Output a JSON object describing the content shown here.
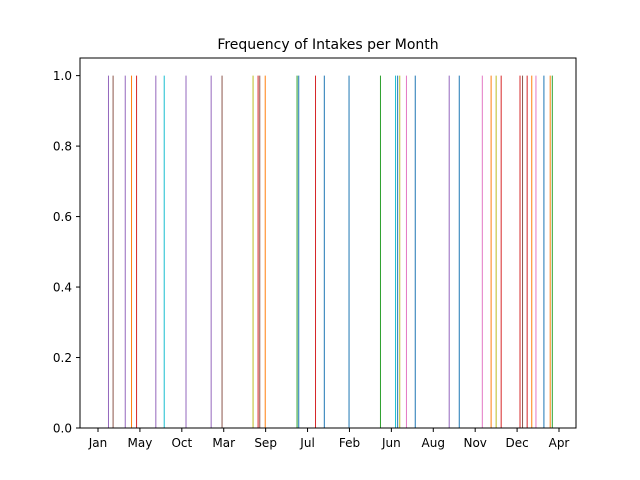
{
  "chart_data": {
    "type": "bar",
    "title": "Frequency of Intakes per Month",
    "xlabel": "",
    "ylabel": "",
    "ylim": [
      0,
      1.05
    ],
    "y_ticks": [
      "0.0",
      "0.2",
      "0.4",
      "0.6",
      "0.8",
      "1.0"
    ],
    "y_tick_values": [
      0.0,
      0.2,
      0.4,
      0.6,
      0.8,
      1.0
    ],
    "x_tick_labels": [
      "Jan",
      "May",
      "Oct",
      "Mar",
      "Sep",
      "Jul",
      "Feb",
      "Jun",
      "Aug",
      "Nov",
      "Dec",
      "Apr"
    ],
    "xlim": [
      0,
      11.5
    ],
    "grid": false,
    "bars": [
      {
        "x": 0.25,
        "value": 1.0,
        "color": "#9467bd"
      },
      {
        "x": 0.36,
        "value": 1.0,
        "color": "#8c564b"
      },
      {
        "x": 0.65,
        "value": 1.0,
        "color": "#9467bd"
      },
      {
        "x": 0.8,
        "value": 1.0,
        "color": "#ff7f0e"
      },
      {
        "x": 0.92,
        "value": 1.0,
        "color": "#d62728"
      },
      {
        "x": 1.38,
        "value": 1.0,
        "color": "#9467bd"
      },
      {
        "x": 1.58,
        "value": 1.0,
        "color": "#17becf"
      },
      {
        "x": 2.1,
        "value": 1.0,
        "color": "#9467bd"
      },
      {
        "x": 2.7,
        "value": 1.0,
        "color": "#9467bd"
      },
      {
        "x": 2.96,
        "value": 1.0,
        "color": "#8c564b"
      },
      {
        "x": 3.7,
        "value": 1.0,
        "color": "#bcbd22"
      },
      {
        "x": 3.82,
        "value": 1.0,
        "color": "#d62728"
      },
      {
        "x": 3.86,
        "value": 1.0,
        "color": "#8c564b"
      },
      {
        "x": 3.99,
        "value": 1.0,
        "color": "#ff7f0e"
      },
      {
        "x": 4.75,
        "value": 1.0,
        "color": "#2ca02c"
      },
      {
        "x": 4.79,
        "value": 1.0,
        "color": "#1f77b4"
      },
      {
        "x": 5.19,
        "value": 1.0,
        "color": "#d62728"
      },
      {
        "x": 5.4,
        "value": 1.0,
        "color": "#1f77b4"
      },
      {
        "x": 5.99,
        "value": 1.0,
        "color": "#1f77b4"
      },
      {
        "x": 6.74,
        "value": 1.0,
        "color": "#2ca02c"
      },
      {
        "x": 7.1,
        "value": 1.0,
        "color": "#17becf"
      },
      {
        "x": 7.15,
        "value": 1.0,
        "color": "#1f77b4"
      },
      {
        "x": 7.2,
        "value": 1.0,
        "color": "#bcbd22"
      },
      {
        "x": 7.36,
        "value": 1.0,
        "color": "#e377c2"
      },
      {
        "x": 7.57,
        "value": 1.0,
        "color": "#1f77b4"
      },
      {
        "x": 8.38,
        "value": 1.0,
        "color": "#9467bd"
      },
      {
        "x": 8.62,
        "value": 1.0,
        "color": "#1f77b4"
      },
      {
        "x": 9.17,
        "value": 1.0,
        "color": "#e377c2"
      },
      {
        "x": 9.38,
        "value": 1.0,
        "color": "#ff7f0e"
      },
      {
        "x": 9.5,
        "value": 1.0,
        "color": "#bcbd22"
      },
      {
        "x": 9.62,
        "value": 1.0,
        "color": "#d62728"
      },
      {
        "x": 10.07,
        "value": 1.0,
        "color": "#d62728"
      },
      {
        "x": 10.13,
        "value": 1.0,
        "color": "#8c564b"
      },
      {
        "x": 10.24,
        "value": 1.0,
        "color": "#d62728"
      },
      {
        "x": 10.35,
        "value": 1.0,
        "color": "#ff7f0e"
      },
      {
        "x": 10.45,
        "value": 1.0,
        "color": "#e377c2"
      },
      {
        "x": 10.64,
        "value": 1.0,
        "color": "#1f77b4"
      },
      {
        "x": 10.79,
        "value": 1.0,
        "color": "#ff7f0e"
      },
      {
        "x": 10.84,
        "value": 1.0,
        "color": "#2ca02c"
      }
    ]
  }
}
